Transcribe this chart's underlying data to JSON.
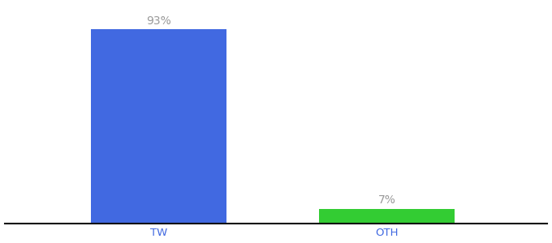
{
  "categories": [
    "TW",
    "OTH"
  ],
  "values": [
    93,
    7
  ],
  "bar_colors": [
    "#4169e1",
    "#33cc33"
  ],
  "labels": [
    "93%",
    "7%"
  ],
  "background_color": "#ffffff",
  "ylim": [
    0,
    105
  ],
  "label_fontsize": 10,
  "tick_fontsize": 9.5,
  "label_color": "#999999",
  "axis_line_color": "#111111",
  "bar_positions": [
    0.25,
    0.62
  ],
  "bar_width": 0.22,
  "xlim": [
    0.0,
    0.88
  ]
}
